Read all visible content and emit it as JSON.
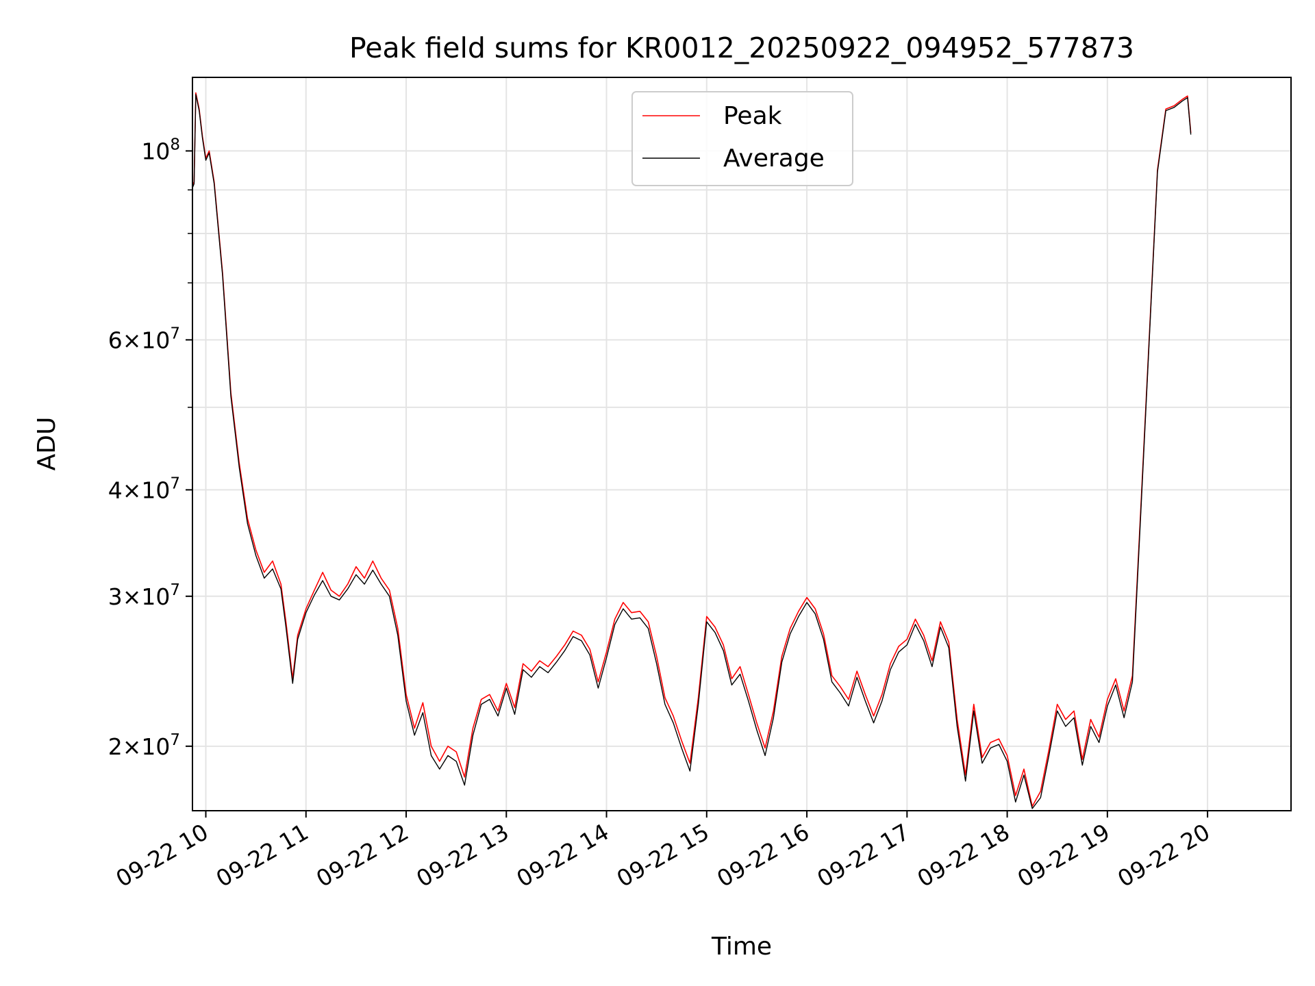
{
  "chart_data": {
    "type": "line",
    "title": "Peak field sums for KR0012_20250922_094952_577873",
    "xlabel": "Time",
    "ylabel": "ADU",
    "yscale": "log",
    "grid": true,
    "legend_position": "top-center",
    "x_ticks": [
      "09-22 10",
      "09-22 11",
      "09-22 12",
      "09-22 13",
      "09-22 14",
      "09-22 15",
      "09-22 16",
      "09-22 17",
      "09-22 18",
      "09-22 19",
      "09-22 20"
    ],
    "y_ticks": [
      {
        "value": 20000000,
        "mantissa": "2",
        "exp": "7"
      },
      {
        "value": 30000000,
        "mantissa": "3",
        "exp": "7"
      },
      {
        "value": 40000000,
        "mantissa": "4",
        "exp": "7"
      },
      {
        "value": 60000000,
        "mantissa": "6",
        "exp": "7"
      },
      {
        "value": 100000000,
        "mantissa": "",
        "exp": "8"
      }
    ],
    "xlim": [
      "2025-09-22 09:52",
      "2025-09-22 20:50"
    ],
    "ylim": [
      16800000,
      122000000
    ],
    "series": [
      {
        "name": "Peak",
        "color": "#ff0000",
        "points": [
          [
            "09:52",
            91000000
          ],
          [
            "09:53",
            92000000
          ],
          [
            "09:54",
            117000000
          ],
          [
            "09:56",
            112000000
          ],
          [
            "09:58",
            104000000
          ],
          [
            "10:00",
            98000000
          ],
          [
            "10:02",
            100000000
          ],
          [
            "10:05",
            92000000
          ],
          [
            "10:10",
            72000000
          ],
          [
            "10:15",
            52000000
          ],
          [
            "10:20",
            43000000
          ],
          [
            "10:25",
            37000000
          ],
          [
            "10:30",
            34000000
          ],
          [
            "10:35",
            32000000
          ],
          [
            "10:40",
            33000000
          ],
          [
            "10:45",
            31000000
          ],
          [
            "10:48",
            28000000
          ],
          [
            "10:52",
            24000000
          ],
          [
            "10:55",
            27000000
          ],
          [
            "11:00",
            29000000
          ],
          [
            "11:05",
            30500000
          ],
          [
            "11:10",
            32000000
          ],
          [
            "11:15",
            30500000
          ],
          [
            "11:20",
            30000000
          ],
          [
            "11:25",
            31000000
          ],
          [
            "11:30",
            32500000
          ],
          [
            "11:35",
            31500000
          ],
          [
            "11:40",
            33000000
          ],
          [
            "11:45",
            31500000
          ],
          [
            "11:50",
            30500000
          ],
          [
            "11:55",
            27500000
          ],
          [
            "12:00",
            23000000
          ],
          [
            "12:05",
            21000000
          ],
          [
            "12:10",
            22500000
          ],
          [
            "12:15",
            20000000
          ],
          [
            "12:20",
            19200000
          ],
          [
            "12:25",
            20000000
          ],
          [
            "12:30",
            19700000
          ],
          [
            "12:35",
            18400000
          ],
          [
            "12:40",
            21000000
          ],
          [
            "12:45",
            22700000
          ],
          [
            "12:50",
            23000000
          ],
          [
            "12:55",
            22000000
          ],
          [
            "13:00",
            23700000
          ],
          [
            "13:05",
            22200000
          ],
          [
            "13:10",
            25000000
          ],
          [
            "13:15",
            24500000
          ],
          [
            "13:20",
            25200000
          ],
          [
            "13:25",
            24800000
          ],
          [
            "13:30",
            25500000
          ],
          [
            "13:35",
            26300000
          ],
          [
            "13:40",
            27300000
          ],
          [
            "13:45",
            27000000
          ],
          [
            "13:50",
            26000000
          ],
          [
            "13:55",
            23800000
          ],
          [
            "14:00",
            25800000
          ],
          [
            "14:05",
            28200000
          ],
          [
            "14:10",
            29500000
          ],
          [
            "14:15",
            28700000
          ],
          [
            "14:20",
            28800000
          ],
          [
            "14:25",
            28000000
          ],
          [
            "14:30",
            25500000
          ],
          [
            "14:35",
            22800000
          ],
          [
            "14:40",
            21700000
          ],
          [
            "14:45",
            20300000
          ],
          [
            "14:50",
            19100000
          ],
          [
            "14:55",
            22800000
          ],
          [
            "15:00",
            28400000
          ],
          [
            "15:05",
            27600000
          ],
          [
            "15:10",
            26300000
          ],
          [
            "15:15",
            24000000
          ],
          [
            "15:20",
            24800000
          ],
          [
            "15:25",
            23000000
          ],
          [
            "15:30",
            21300000
          ],
          [
            "15:35",
            19900000
          ],
          [
            "15:40",
            22000000
          ],
          [
            "15:45",
            25500000
          ],
          [
            "15:50",
            27500000
          ],
          [
            "15:55",
            28800000
          ],
          [
            "16:00",
            29900000
          ],
          [
            "16:05",
            29000000
          ],
          [
            "16:10",
            27100000
          ],
          [
            "16:15",
            24200000
          ],
          [
            "16:20",
            23500000
          ],
          [
            "16:25",
            22700000
          ],
          [
            "16:30",
            24500000
          ],
          [
            "16:35",
            23000000
          ],
          [
            "16:40",
            21700000
          ],
          [
            "16:45",
            23000000
          ],
          [
            "16:50",
            25000000
          ],
          [
            "16:55",
            26200000
          ],
          [
            "17:00",
            26700000
          ],
          [
            "17:05",
            28200000
          ],
          [
            "17:10",
            27000000
          ],
          [
            "17:15",
            25200000
          ],
          [
            "17:20",
            28000000
          ],
          [
            "17:25",
            26500000
          ],
          [
            "17:30",
            21500000
          ],
          [
            "17:35",
            18500000
          ],
          [
            "17:40",
            22400000
          ],
          [
            "17:45",
            19400000
          ],
          [
            "17:50",
            20200000
          ],
          [
            "17:55",
            20400000
          ],
          [
            "18:00",
            19500000
          ],
          [
            "18:05",
            17500000
          ],
          [
            "18:10",
            18800000
          ],
          [
            "18:15",
            17000000
          ],
          [
            "18:20",
            17700000
          ],
          [
            "18:25",
            19800000
          ],
          [
            "18:30",
            22400000
          ],
          [
            "18:35",
            21500000
          ],
          [
            "18:40",
            22000000
          ],
          [
            "18:45",
            19300000
          ],
          [
            "18:50",
            21500000
          ],
          [
            "18:55",
            20500000
          ],
          [
            "19:00",
            22700000
          ],
          [
            "19:05",
            24000000
          ],
          [
            "19:10",
            22000000
          ],
          [
            "19:15",
            24200000
          ],
          [
            "19:20",
            38000000
          ],
          [
            "19:25",
            60000000
          ],
          [
            "19:30",
            95000000
          ],
          [
            "19:35",
            112000000
          ],
          [
            "19:40",
            113000000
          ],
          [
            "19:45",
            115000000
          ],
          [
            "19:48",
            116000000
          ],
          [
            "19:50",
            105000000
          ]
        ]
      },
      {
        "name": "Average",
        "color": "#000000",
        "points": [
          [
            "09:52",
            90500000
          ],
          [
            "09:53",
            91500000
          ],
          [
            "09:54",
            116500000
          ],
          [
            "09:56",
            111500000
          ],
          [
            "09:58",
            103500000
          ],
          [
            "10:00",
            97500000
          ],
          [
            "10:02",
            99500000
          ],
          [
            "10:05",
            91500000
          ],
          [
            "10:10",
            71500000
          ],
          [
            "10:15",
            51500000
          ],
          [
            "10:20",
            42500000
          ],
          [
            "10:25",
            36500000
          ],
          [
            "10:30",
            33500000
          ],
          [
            "10:35",
            31500000
          ],
          [
            "10:40",
            32300000
          ],
          [
            "10:45",
            30600000
          ],
          [
            "10:48",
            27600000
          ],
          [
            "10:52",
            23700000
          ],
          [
            "10:55",
            26700000
          ],
          [
            "11:00",
            28700000
          ],
          [
            "11:05",
            30100000
          ],
          [
            "11:10",
            31300000
          ],
          [
            "11:15",
            30000000
          ],
          [
            "11:20",
            29700000
          ],
          [
            "11:25",
            30600000
          ],
          [
            "11:30",
            31800000
          ],
          [
            "11:35",
            31000000
          ],
          [
            "11:40",
            32200000
          ],
          [
            "11:45",
            31000000
          ],
          [
            "11:50",
            30000000
          ],
          [
            "11:55",
            27000000
          ],
          [
            "12:00",
            22600000
          ],
          [
            "12:05",
            20600000
          ],
          [
            "12:10",
            21900000
          ],
          [
            "12:15",
            19500000
          ],
          [
            "12:20",
            18800000
          ],
          [
            "12:25",
            19500000
          ],
          [
            "12:30",
            19200000
          ],
          [
            "12:35",
            18000000
          ],
          [
            "12:40",
            20600000
          ],
          [
            "12:45",
            22400000
          ],
          [
            "12:50",
            22700000
          ],
          [
            "12:55",
            21700000
          ],
          [
            "13:00",
            23400000
          ],
          [
            "13:05",
            21800000
          ],
          [
            "13:10",
            24600000
          ],
          [
            "13:15",
            24100000
          ],
          [
            "13:20",
            24800000
          ],
          [
            "13:25",
            24400000
          ],
          [
            "13:30",
            25100000
          ],
          [
            "13:35",
            25900000
          ],
          [
            "13:40",
            26900000
          ],
          [
            "13:45",
            26600000
          ],
          [
            "13:50",
            25600000
          ],
          [
            "13:55",
            23400000
          ],
          [
            "14:00",
            25400000
          ],
          [
            "14:05",
            27800000
          ],
          [
            "14:10",
            29000000
          ],
          [
            "14:15",
            28200000
          ],
          [
            "14:20",
            28300000
          ],
          [
            "14:25",
            27500000
          ],
          [
            "14:30",
            25000000
          ],
          [
            "14:35",
            22400000
          ],
          [
            "14:40",
            21300000
          ],
          [
            "14:45",
            19900000
          ],
          [
            "14:50",
            18700000
          ],
          [
            "14:55",
            22400000
          ],
          [
            "15:00",
            28000000
          ],
          [
            "15:05",
            27200000
          ],
          [
            "15:10",
            25900000
          ],
          [
            "15:15",
            23600000
          ],
          [
            "15:20",
            24300000
          ],
          [
            "15:25",
            22600000
          ],
          [
            "15:30",
            20900000
          ],
          [
            "15:35",
            19500000
          ],
          [
            "15:40",
            21600000
          ],
          [
            "15:45",
            25100000
          ],
          [
            "15:50",
            27100000
          ],
          [
            "15:55",
            28400000
          ],
          [
            "16:00",
            29500000
          ],
          [
            "16:05",
            28600000
          ],
          [
            "16:10",
            26700000
          ],
          [
            "16:15",
            23800000
          ],
          [
            "16:20",
            23100000
          ],
          [
            "16:25",
            22300000
          ],
          [
            "16:30",
            24100000
          ],
          [
            "16:35",
            22600000
          ],
          [
            "16:40",
            21300000
          ],
          [
            "16:45",
            22600000
          ],
          [
            "16:50",
            24600000
          ],
          [
            "16:55",
            25800000
          ],
          [
            "17:00",
            26300000
          ],
          [
            "17:05",
            27800000
          ],
          [
            "17:10",
            26600000
          ],
          [
            "17:15",
            24800000
          ],
          [
            "17:20",
            27600000
          ],
          [
            "17:25",
            26100000
          ],
          [
            "17:30",
            21100000
          ],
          [
            "17:35",
            18200000
          ],
          [
            "17:40",
            22000000
          ],
          [
            "17:45",
            19100000
          ],
          [
            "17:50",
            19900000
          ],
          [
            "17:55",
            20100000
          ],
          [
            "18:00",
            19200000
          ],
          [
            "18:05",
            17200000
          ],
          [
            "18:10",
            18500000
          ],
          [
            "18:15",
            16900000
          ],
          [
            "18:20",
            17400000
          ],
          [
            "18:25",
            19500000
          ],
          [
            "18:30",
            22000000
          ],
          [
            "18:35",
            21100000
          ],
          [
            "18:40",
            21600000
          ],
          [
            "18:45",
            19000000
          ],
          [
            "18:50",
            21100000
          ],
          [
            "18:55",
            20200000
          ],
          [
            "19:00",
            22300000
          ],
          [
            "19:05",
            23600000
          ],
          [
            "19:10",
            21600000
          ],
          [
            "19:15",
            23800000
          ],
          [
            "19:20",
            37500000
          ],
          [
            "19:25",
            59500000
          ],
          [
            "19:30",
            94500000
          ],
          [
            "19:35",
            111500000
          ],
          [
            "19:40",
            112500000
          ],
          [
            "19:45",
            114500000
          ],
          [
            "19:48",
            115500000
          ],
          [
            "19:50",
            104500000
          ]
        ]
      }
    ]
  }
}
